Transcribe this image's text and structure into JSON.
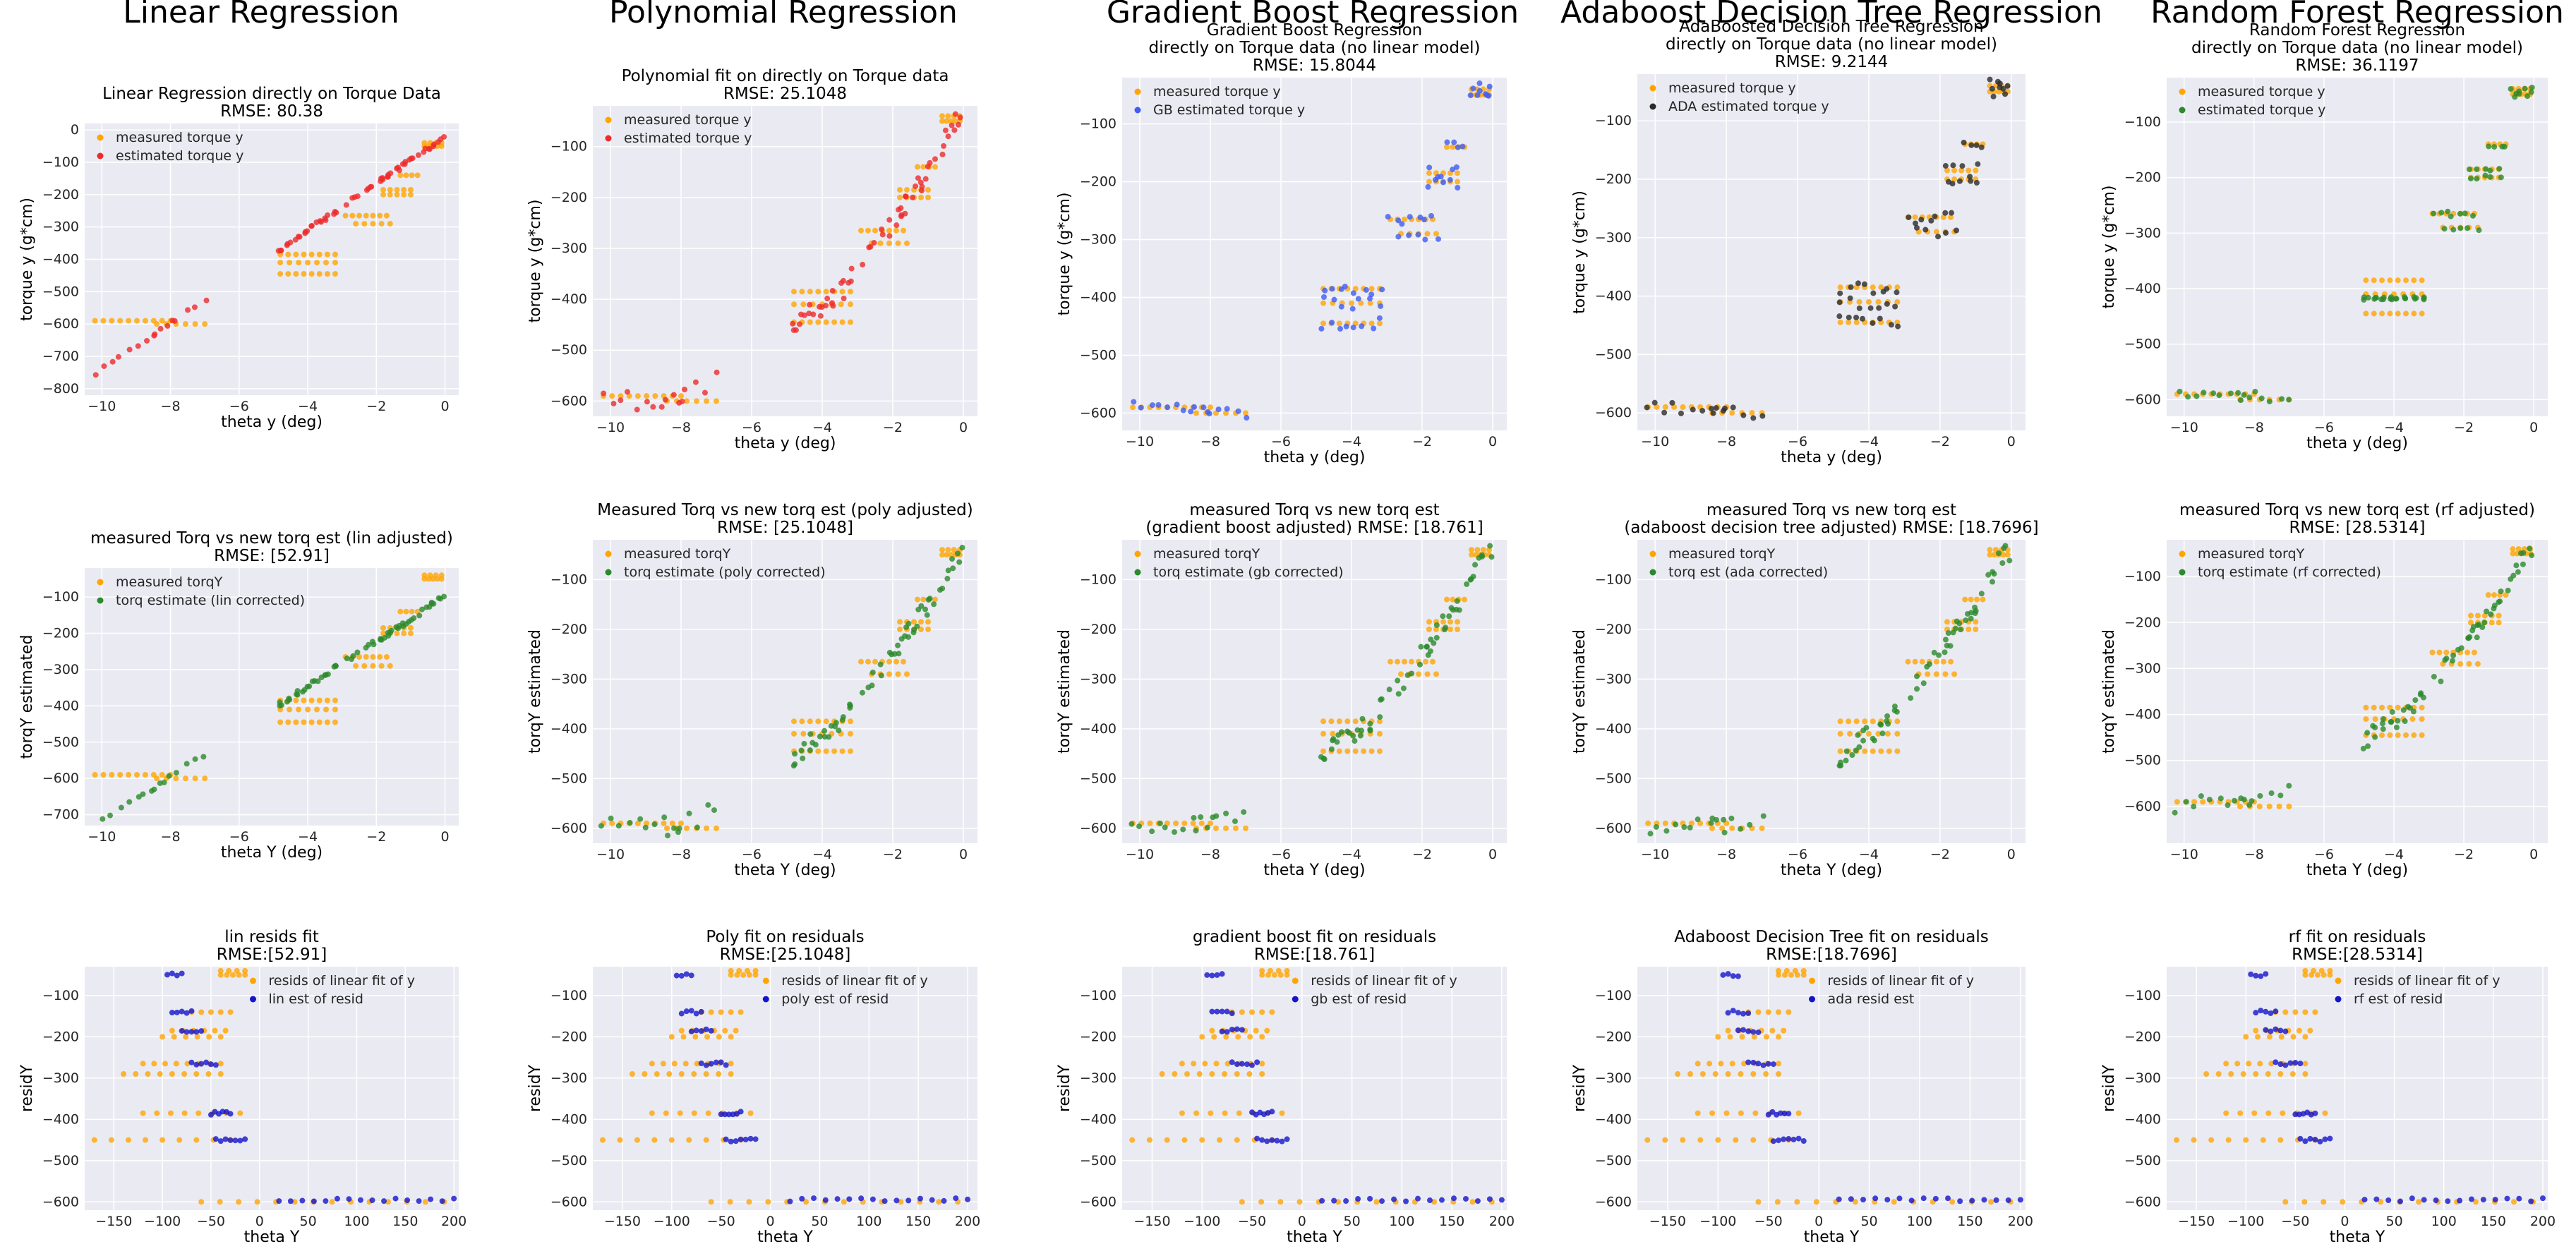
{
  "colors": {
    "orange": "#ffa500",
    "red": "#ee2a2a",
    "green": "#2b8a2b",
    "blue": "#3f5cf5",
    "dark_blue": "#1414cc",
    "black": "#2a2a2a",
    "panel_bg": "#eaeaf2"
  },
  "column_titles": [
    "Linear Regression",
    "Polynomial Regression",
    "Gradient Boost Regression",
    "Adaboost Decision Tree Regression",
    "Random Forest Regression"
  ],
  "chart_data": [
    {
      "id": "r1c1",
      "type": "scatter",
      "title": "Linear Regression directly on Torque Data\nRMSE: 80.38",
      "xlabel": "theta y (deg)",
      "ylabel": "torque y (g*cm)",
      "xlim": [
        -10.5,
        0.4
      ],
      "ylim": [
        -820,
        20
      ],
      "xticks": [
        -10,
        -8,
        -6,
        -4,
        -2,
        0
      ],
      "yticks": [
        0,
        -100,
        -200,
        -300,
        -400,
        -500,
        -600,
        -700,
        -800
      ],
      "legend_placement": "upper-left",
      "grid": true,
      "series": [
        {
          "name": "measured torque y",
          "color": "orange",
          "kind": "measured"
        },
        {
          "name": "estimated torque y",
          "color": "red",
          "kind": "linear_est",
          "est": {
            "a": 72,
            "b": -22
          }
        }
      ]
    },
    {
      "id": "r1c2",
      "type": "scatter",
      "title": "Polynomial fit on directly on Torque data\nRMSE: 25.1048",
      "xlabel": "theta y (deg)",
      "ylabel": "torque y (g*cm)",
      "xlim": [
        -10.5,
        0.4
      ],
      "ylim": [
        -630,
        -20
      ],
      "xticks": [
        -10,
        -8,
        -6,
        -4,
        -2,
        0
      ],
      "yticks": [
        -100,
        -200,
        -300,
        -400,
        -500,
        -600
      ],
      "legend_placement": "upper-left",
      "grid": true,
      "series": [
        {
          "name": "measured torque y",
          "color": "orange",
          "kind": "measured"
        },
        {
          "name": "estimated torque y",
          "color": "red",
          "kind": "curve_est"
        }
      ]
    },
    {
      "id": "r1c3",
      "type": "scatter",
      "title": "Gradient Boost Regression\ndirectly on Torque data (no linear model)\nRMSE: 15.8044",
      "xlabel": "theta y (deg)",
      "ylabel": "torque y (g*cm)",
      "xlim": [
        -10.5,
        0.4
      ],
      "ylim": [
        -630,
        -20
      ],
      "xticks": [
        -10,
        -8,
        -6,
        -4,
        -2,
        0
      ],
      "yticks": [
        -100,
        -200,
        -300,
        -400,
        -500,
        -600
      ],
      "legend_placement": "upper-left",
      "grid": true,
      "series": [
        {
          "name": "measured torque y",
          "color": "orange",
          "kind": "measured"
        },
        {
          "name": "GB estimated torque y",
          "color": "blue",
          "kind": "step_est"
        }
      ]
    },
    {
      "id": "r1c4",
      "type": "scatter",
      "title": "AdaBoosted Decision Tree Regression\ndirectly on Torque data (no linear model)\nRMSE: 9.2144",
      "xlabel": "theta y (deg)",
      "ylabel": "torque y (g*cm)",
      "xlim": [
        -10.5,
        0.4
      ],
      "ylim": [
        -630,
        -20
      ],
      "xticks": [
        -10,
        -8,
        -6,
        -4,
        -2,
        0
      ],
      "yticks": [
        -100,
        -200,
        -300,
        -400,
        -500,
        -600
      ],
      "legend_placement": "upper-left",
      "grid": true,
      "series": [
        {
          "name": "measured torque y",
          "color": "orange",
          "kind": "measured"
        },
        {
          "name": "ADA estimated torque y",
          "color": "black",
          "kind": "step_est"
        }
      ]
    },
    {
      "id": "r1c5",
      "type": "scatter",
      "title": "Random Forest Regression\ndirectly on Torque data (no linear model)\nRMSE: 36.1197",
      "xlabel": "theta y (deg)",
      "ylabel": "torque y (g*cm)",
      "xlim": [
        -10.5,
        0.4
      ],
      "ylim": [
        -630,
        -20
      ],
      "xticks": [
        -10,
        -8,
        -6,
        -4,
        -2,
        0
      ],
      "yticks": [
        -100,
        -200,
        -300,
        -400,
        -500,
        -600
      ],
      "legend_placement": "upper-left",
      "grid": true,
      "series": [
        {
          "name": "measured torque y",
          "color": "orange",
          "kind": "measured"
        },
        {
          "name": "estimated torque y",
          "color": "green",
          "kind": "flat_est"
        }
      ]
    },
    {
      "id": "r2c1",
      "type": "scatter",
      "title": "measured Torq vs new torq est (lin adjusted)\nRMSE: [52.91]",
      "xlabel": "theta Y (deg)",
      "ylabel": "torqY estimated",
      "xlim": [
        -10.5,
        0.4
      ],
      "ylim": [
        -730,
        -20
      ],
      "xticks": [
        -10,
        -8,
        -6,
        -4,
        -2,
        0
      ],
      "yticks": [
        -100,
        -200,
        -300,
        -400,
        -500,
        -600,
        -700
      ],
      "legend_placement": "upper-left",
      "grid": true,
      "series": [
        {
          "name": "measured torqY",
          "color": "orange",
          "kind": "measured"
        },
        {
          "name": "torq estimate (lin corrected)",
          "color": "green",
          "kind": "linear_est",
          "est": {
            "a": 62,
            "b": -98
          }
        }
      ]
    },
    {
      "id": "r2c2",
      "type": "scatter",
      "title": "Measured Torq vs new torq est (poly adjusted)\nRMSE: [25.1048]",
      "xlabel": "theta Y (deg)",
      "ylabel": "torqY estimated",
      "xlim": [
        -10.5,
        0.4
      ],
      "ylim": [
        -630,
        -20
      ],
      "xticks": [
        -10,
        -8,
        -6,
        -4,
        -2,
        0
      ],
      "yticks": [
        -100,
        -200,
        -300,
        -400,
        -500,
        -600
      ],
      "legend_placement": "upper-left",
      "grid": true,
      "series": [
        {
          "name": "measured torqY",
          "color": "orange",
          "kind": "measured"
        },
        {
          "name": "torq estimate (poly corrected)",
          "color": "green",
          "kind": "curve_est"
        }
      ]
    },
    {
      "id": "r2c3",
      "type": "scatter",
      "title": "measured Torq vs new torq est\n(gradient boost adjusted) RMSE: [18.761]",
      "xlabel": "theta Y (deg)",
      "ylabel": "torqY estimated",
      "xlim": [
        -10.5,
        0.4
      ],
      "ylim": [
        -630,
        -20
      ],
      "xticks": [
        -10,
        -8,
        -6,
        -4,
        -2,
        0
      ],
      "yticks": [
        -100,
        -200,
        -300,
        -400,
        -500,
        -600
      ],
      "legend_placement": "upper-left",
      "grid": true,
      "series": [
        {
          "name": "measured torqY",
          "color": "orange",
          "kind": "measured"
        },
        {
          "name": "torq estimate (gb corrected)",
          "color": "green",
          "kind": "curve_est"
        }
      ]
    },
    {
      "id": "r2c4",
      "type": "scatter",
      "title": "measured Torq vs new torq est\n(adaboost decision tree adjusted) RMSE: [18.7696]",
      "xlabel": "theta Y (deg)",
      "ylabel": "torqY estimated",
      "xlim": [
        -10.5,
        0.4
      ],
      "ylim": [
        -630,
        -20
      ],
      "xticks": [
        -10,
        -8,
        -6,
        -4,
        -2,
        0
      ],
      "yticks": [
        -100,
        -200,
        -300,
        -400,
        -500,
        -600
      ],
      "legend_placement": "upper-left",
      "grid": true,
      "series": [
        {
          "name": "measured torqY",
          "color": "orange",
          "kind": "measured"
        },
        {
          "name": "torq est (ada corrected)",
          "color": "green",
          "kind": "curve_est"
        }
      ]
    },
    {
      "id": "r2c5",
      "type": "scatter",
      "title": "measured Torq vs new torq est (rf adjusted)\nRMSE: [28.5314]",
      "xlabel": "theta Y (deg)",
      "ylabel": "torqY estimated",
      "xlim": [
        -10.5,
        0.4
      ],
      "ylim": [
        -680,
        -20
      ],
      "xticks": [
        -10,
        -8,
        -6,
        -4,
        -2,
        0
      ],
      "yticks": [
        -100,
        -200,
        -300,
        -400,
        -500,
        -600
      ],
      "legend_placement": "upper-left",
      "grid": true,
      "series": [
        {
          "name": "measured torqY",
          "color": "orange",
          "kind": "measured"
        },
        {
          "name": "torq estimate (rf corrected)",
          "color": "green",
          "kind": "curve_est"
        }
      ]
    },
    {
      "id": "r3c1",
      "type": "scatter",
      "title": "lin resids fit\nRMSE:[52.91]",
      "xlabel": "theta Y",
      "ylabel": "residY",
      "xlim": [
        -180,
        205
      ],
      "ylim": [
        -620,
        -30
      ],
      "xticks": [
        -150,
        -100,
        -50,
        0,
        50,
        100,
        150,
        200
      ],
      "yticks": [
        -100,
        -200,
        -300,
        -400,
        -500,
        -600
      ],
      "legend_placement": "upper-right",
      "grid": true,
      "series": [
        {
          "name": "resids of linear fit of y",
          "color": "orange",
          "kind": "resid"
        },
        {
          "name": "lin est of resid",
          "color": "dark_blue",
          "kind": "resid_est"
        }
      ]
    },
    {
      "id": "r3c2",
      "type": "scatter",
      "title": "Poly fit on residuals\nRMSE:[25.1048]",
      "xlabel": "theta Y",
      "ylabel": "residY",
      "xlim": [
        -180,
        210
      ],
      "ylim": [
        -620,
        -30
      ],
      "xticks": [
        -150,
        -100,
        -50,
        0,
        50,
        100,
        150,
        200
      ],
      "yticks": [
        -100,
        -200,
        -300,
        -400,
        -500,
        -600
      ],
      "legend_placement": "upper-right",
      "grid": true,
      "series": [
        {
          "name": "resids of linear fit of y",
          "color": "orange",
          "kind": "resid"
        },
        {
          "name": "poly est of resid",
          "color": "dark_blue",
          "kind": "resid_est"
        }
      ]
    },
    {
      "id": "r3c3",
      "type": "scatter",
      "title": "gradient boost fit on residuals\nRMSE:[18.761]",
      "xlabel": "theta Y",
      "ylabel": "residY",
      "xlim": [
        -180,
        205
      ],
      "ylim": [
        -620,
        -30
      ],
      "xticks": [
        -150,
        -100,
        -50,
        0,
        50,
        100,
        150,
        200
      ],
      "yticks": [
        -100,
        -200,
        -300,
        -400,
        -500,
        -600
      ],
      "legend_placement": "upper-right",
      "grid": true,
      "series": [
        {
          "name": "resids of linear fit of y",
          "color": "orange",
          "kind": "resid"
        },
        {
          "name": "gb est of resid",
          "color": "dark_blue",
          "kind": "resid_est"
        }
      ]
    },
    {
      "id": "r3c4",
      "type": "scatter",
      "title": "Adaboost Decision Tree fit on residuals\nRMSE:[18.7696]",
      "xlabel": "theta Y",
      "ylabel": "residY",
      "xlim": [
        -180,
        205
      ],
      "ylim": [
        -620,
        -30
      ],
      "xticks": [
        -150,
        -100,
        -50,
        0,
        50,
        100,
        150,
        200
      ],
      "yticks": [
        -100,
        -200,
        -300,
        -400,
        -500,
        -600
      ],
      "legend_placement": "upper-right",
      "grid": true,
      "series": [
        {
          "name": "resids of linear fit of y",
          "color": "orange",
          "kind": "resid"
        },
        {
          "name": "ada resid est",
          "color": "dark_blue",
          "kind": "resid_est"
        }
      ]
    },
    {
      "id": "r3c5",
      "type": "scatter",
      "title": "rf fit on residuals\nRMSE:[28.5314]",
      "xlabel": "theta Y",
      "ylabel": "residY",
      "xlim": [
        -180,
        205
      ],
      "ylim": [
        -620,
        -30
      ],
      "xticks": [
        -150,
        -100,
        -50,
        0,
        50,
        100,
        150,
        200
      ],
      "yticks": [
        -100,
        -200,
        -300,
        -400,
        -500,
        -600
      ],
      "legend_placement": "upper-right",
      "grid": true,
      "series": [
        {
          "name": "resids of linear fit of y",
          "color": "orange",
          "kind": "resid"
        },
        {
          "name": "rf est of resid",
          "color": "dark_blue",
          "kind": "resid_est"
        }
      ]
    }
  ],
  "measured_clusters": [
    {
      "x_range": [
        -10.2,
        -8.0
      ],
      "y": -590,
      "n": 10
    },
    {
      "x_range": [
        -8.4,
        -7.0
      ],
      "y": -600,
      "n": 6
    },
    {
      "x_range": [
        -4.8,
        -3.2
      ],
      "y": -385,
      "n": 8
    },
    {
      "x_range": [
        -4.8,
        -3.2
      ],
      "y": -410,
      "n": 7
    },
    {
      "x_range": [
        -4.8,
        -3.2
      ],
      "y": -445,
      "n": 8
    },
    {
      "x_range": [
        -2.9,
        -1.7
      ],
      "y": -265,
      "n": 7
    },
    {
      "x_range": [
        -2.6,
        -1.6
      ],
      "y": -290,
      "n": 5
    },
    {
      "x_range": [
        -1.8,
        -1.0
      ],
      "y": -185,
      "n": 5
    },
    {
      "x_range": [
        -1.8,
        -1.0
      ],
      "y": -200,
      "n": 5
    },
    {
      "x_range": [
        -1.3,
        -0.8
      ],
      "y": -140,
      "n": 4
    },
    {
      "x_range": [
        -0.6,
        -0.1
      ],
      "y": -50,
      "n": 5
    },
    {
      "x_range": [
        -0.6,
        -0.1
      ],
      "y": -40,
      "n": 4
    }
  ],
  "resid_clusters": [
    {
      "x_range": [
        -170,
        -30
      ],
      "y": -450,
      "n": 9
    },
    {
      "x_range": [
        -120,
        -20
      ],
      "y": -385,
      "n": 8
    },
    {
      "x_range": [
        -140,
        -40
      ],
      "y": -290,
      "n": 9
    },
    {
      "x_range": [
        -120,
        -40
      ],
      "y": -265,
      "n": 8
    },
    {
      "x_range": [
        -100,
        -40
      ],
      "y": -200,
      "n": 6
    },
    {
      "x_range": [
        -90,
        -35
      ],
      "y": -185,
      "n": 6
    },
    {
      "x_range": [
        -70,
        -30
      ],
      "y": -140,
      "n": 5
    },
    {
      "x_range": [
        -40,
        -15
      ],
      "y": -50,
      "n": 5
    },
    {
      "x_range": [
        -40,
        -15
      ],
      "y": -40,
      "n": 4
    },
    {
      "x_range": [
        -60,
        190
      ],
      "y": -600,
      "n": 14
    }
  ],
  "resid_est_clusters": [
    {
      "x_range": [
        -95,
        -80
      ],
      "y": -50,
      "n": 4
    },
    {
      "x_range": [
        -90,
        -70
      ],
      "y": -140,
      "n": 5
    },
    {
      "x_range": [
        -80,
        -60
      ],
      "y": -185,
      "n": 5
    },
    {
      "x_range": [
        -70,
        -45
      ],
      "y": -265,
      "n": 6
    },
    {
      "x_range": [
        -50,
        -30
      ],
      "y": -385,
      "n": 6
    },
    {
      "x_range": [
        -45,
        -15
      ],
      "y": -450,
      "n": 7
    },
    {
      "x_range": [
        20,
        200
      ],
      "y": -595,
      "n": 16
    }
  ]
}
